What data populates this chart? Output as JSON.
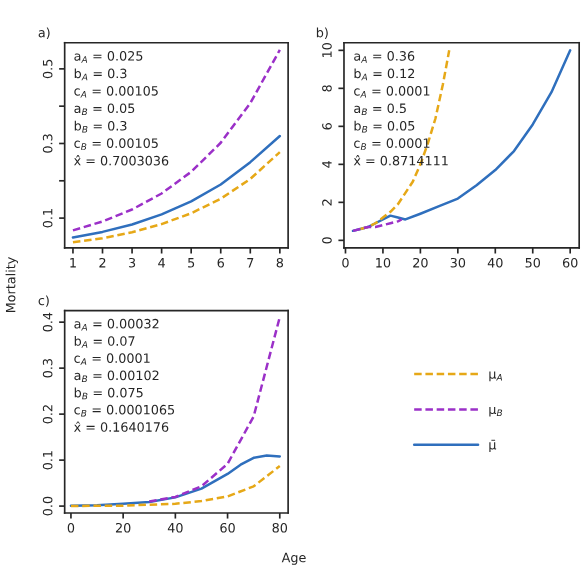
{
  "chart_data": [
    {
      "type": "line",
      "title": "a)",
      "ylabel": "Mortality",
      "xlim": [
        0.72,
        8.28
      ],
      "ylim": [
        0.02,
        0.57
      ],
      "xticks": [
        1,
        2,
        3,
        4,
        5,
        6,
        7,
        8
      ],
      "yticks": [
        0.1,
        {
          "value": 0.2,
          "label": null
        },
        0.3,
        {
          "value": 0.4,
          "label": null
        },
        0.5
      ],
      "grid": false,
      "legend": false,
      "annotations": [
        "a$_{A}$ = 0.025",
        "b$_{A}$ = 0.3",
        "c$_{A}$ = 0.00105",
        "a$_{B}$ = 0.05",
        "b$_{B}$ = 0.3",
        "c$_{B}$ = 0.00105",
        "x̂ = 0.7003036"
      ],
      "series": [
        {
          "color": "#e6a817",
          "line_style": "dashed",
          "x": [
            1,
            2,
            3,
            4,
            5,
            6,
            7,
            8
          ],
          "values": [
            0.035,
            0.046,
            0.062,
            0.084,
            0.113,
            0.152,
            0.205,
            0.277
          ]
        },
        {
          "color": "#9b30c8",
          "line_style": "dashed",
          "x": [
            1,
            2,
            3,
            4,
            5,
            6,
            7,
            8
          ],
          "values": [
            0.067,
            0.091,
            0.123,
            0.166,
            0.224,
            0.302,
            0.408,
            0.551
          ]
        },
        {
          "color": "#2f6fbd",
          "line_style": "solid",
          "x": [
            1,
            2,
            3,
            4,
            5,
            6,
            7,
            8
          ],
          "values": [
            0.048,
            0.063,
            0.083,
            0.11,
            0.145,
            0.19,
            0.25,
            0.32
          ]
        }
      ]
    },
    {
      "type": "line",
      "title": "b)",
      "xlim": [
        -0.4,
        62.4
      ],
      "ylim": [
        -0.4,
        10.4
      ],
      "xticks": [
        0,
        10,
        20,
        30,
        40,
        50,
        60
      ],
      "yticks": [
        0,
        2,
        4,
        6,
        8,
        10
      ],
      "grid": false,
      "legend": false,
      "annotations": [
        "a$_{A}$ = 0.36",
        "b$_{A}$ = 0.12",
        "c$_{A}$ = 0.0001",
        "a$_{B}$ = 0.5",
        "b$_{B}$ = 0.05",
        "c$_{B}$ = 0.0001",
        "x̂ = 0.8714111"
      ],
      "series": [
        {
          "color": "#e6a817",
          "line_style": "dashed",
          "x": [
            4,
            6,
            8,
            10,
            12,
            14,
            16,
            18,
            20,
            22,
            24,
            26,
            27.7
          ],
          "values": [
            0.6,
            0.7,
            0.9,
            1.2,
            1.5,
            1.9,
            2.5,
            3.1,
            4.0,
            5.1,
            6.4,
            8.2,
            10.0
          ]
        },
        {
          "color": "#9b30c8",
          "line_style": "dashed",
          "x": [
            2,
            4,
            6,
            8,
            10,
            12,
            14,
            15
          ],
          "values": [
            0.5,
            0.6,
            0.7,
            0.7,
            0.8,
            0.9,
            1.0,
            1.1
          ]
        },
        {
          "color": "#2f6fbd",
          "line_style": "solid",
          "x": [
            2,
            4,
            6,
            8,
            10,
            12,
            14,
            16,
            20,
            25,
            30,
            35,
            40,
            45,
            50,
            55,
            60
          ],
          "values": [
            0.5,
            0.6,
            0.7,
            0.9,
            1.1,
            1.3,
            1.2,
            1.1,
            1.4,
            1.8,
            2.2,
            2.9,
            3.7,
            4.7,
            6.1,
            7.8,
            10.0
          ]
        }
      ]
    },
    {
      "type": "line",
      "title": "c)",
      "xlabel": "Age",
      "xlim": [
        -2.4,
        83.2
      ],
      "ylim": [
        -0.015,
        0.425
      ],
      "xticks": [
        0,
        20,
        40,
        60,
        80
      ],
      "yticks": [
        {
          "value": 0,
          "label": "0.0"
        },
        0.1,
        0.2,
        0.3,
        0.4
      ],
      "grid": false,
      "legend": "right",
      "annotations": [
        "a$_{A}$ = 0.00032",
        "b$_{A}$ = 0.07",
        "c$_{A}$ = 0.0001",
        "a$_{B}$ = 0.00102",
        "b$_{B}$ = 0.075",
        "c$_{B}$ = 0.0001065",
        "x̂ = 0.1640176"
      ],
      "series": [
        {
          "name": "μ$_{A}$",
          "color": "#e6a817",
          "line_style": "dashed",
          "x": [
            0,
            10,
            20,
            30,
            40,
            50,
            60,
            70,
            80
          ],
          "values": [
            0.0,
            0.001,
            0.001,
            0.003,
            0.005,
            0.011,
            0.021,
            0.043,
            0.087
          ]
        },
        {
          "name": "μ$_{B}$",
          "color": "#9b30c8",
          "line_style": "dashed",
          "x": [
            30,
            40,
            50,
            60,
            70,
            80
          ],
          "values": [
            0.01,
            0.02,
            0.043,
            0.092,
            0.195,
            0.411
          ]
        },
        {
          "name": "μ̄",
          "color": "#2f6fbd",
          "line_style": "solid",
          "x": [
            0,
            10,
            20,
            30,
            40,
            50,
            60,
            65,
            70,
            75,
            80
          ],
          "values": [
            0.001,
            0.002,
            0.005,
            0.009,
            0.019,
            0.038,
            0.07,
            0.09,
            0.105,
            0.11,
            0.108
          ]
        }
      ]
    }
  ]
}
